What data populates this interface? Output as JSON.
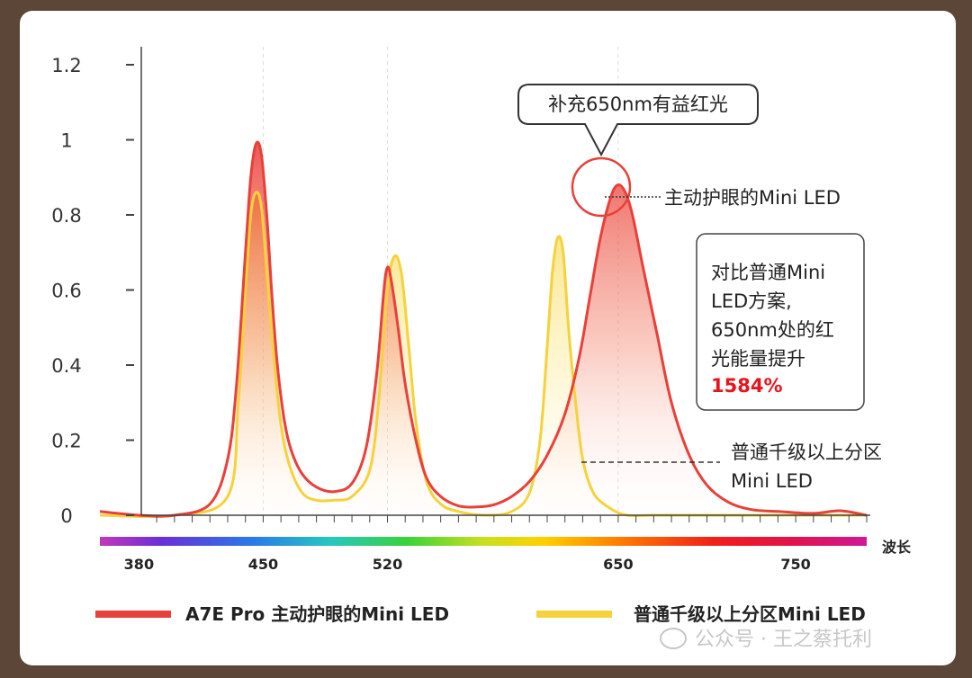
{
  "chart_data": {
    "type": "line",
    "title": "",
    "xlabel": "波长",
    "ylabel": "",
    "xlim": [
      358,
      790
    ],
    "ylim": [
      0,
      1.2
    ],
    "y_ticks": [
      0,
      0.2,
      0.4,
      0.6,
      0.8,
      1,
      1.2
    ],
    "y_tick_labels": [
      "0",
      "0.2",
      "0.4",
      "0.6",
      "0.8",
      "1",
      "1.2"
    ],
    "x_tick_labels": [
      {
        "value": 380,
        "label": "380"
      },
      {
        "value": 450,
        "label": "450"
      },
      {
        "value": 520,
        "label": "520"
      },
      {
        "value": 650,
        "label": "650"
      },
      {
        "value": 750,
        "label": "750"
      }
    ],
    "series": [
      {
        "name": "A7E Pro 主动护眼的Mini LED",
        "color": "#e8403a",
        "x": [
          358,
          380,
          400,
          420,
          430,
          435,
          440,
          443,
          446,
          449,
          452,
          455,
          458,
          462,
          466,
          472,
          480,
          490,
          500,
          508,
          514,
          518,
          520,
          522,
          526,
          530,
          536,
          542,
          550,
          560,
          570,
          580,
          590,
          600,
          610,
          620,
          628,
          634,
          640,
          646,
          650,
          654,
          658,
          664,
          672,
          680,
          690,
          700,
          712,
          725,
          740,
          760,
          775,
          790
        ],
        "y": [
          0.01,
          0.0,
          0.0,
          0.03,
          0.15,
          0.35,
          0.7,
          0.9,
          0.99,
          0.96,
          0.8,
          0.58,
          0.4,
          0.25,
          0.17,
          0.11,
          0.075,
          0.063,
          0.085,
          0.18,
          0.38,
          0.6,
          0.66,
          0.63,
          0.5,
          0.35,
          0.2,
          0.1,
          0.05,
          0.025,
          0.022,
          0.028,
          0.05,
          0.09,
          0.16,
          0.27,
          0.42,
          0.58,
          0.74,
          0.85,
          0.88,
          0.86,
          0.8,
          0.66,
          0.48,
          0.3,
          0.16,
          0.08,
          0.035,
          0.015,
          0.01,
          0.005,
          0.012,
          0.0
        ]
      },
      {
        "name": "普通千级以上分区Mini LED",
        "color": "#f5d23c",
        "x": [
          358,
          400,
          430,
          436,
          440,
          443,
          446,
          449,
          452,
          456,
          460,
          465,
          472,
          480,
          490,
          500,
          510,
          515,
          520,
          524,
          528,
          532,
          536,
          542,
          550,
          560,
          575,
          590,
          600,
          606,
          610,
          613,
          616,
          619,
          622,
          626,
          630,
          636,
          645,
          655,
          670,
          700,
          790
        ],
        "y": [
          0.0,
          0.0,
          0.05,
          0.3,
          0.6,
          0.8,
          0.86,
          0.82,
          0.65,
          0.42,
          0.24,
          0.13,
          0.06,
          0.04,
          0.04,
          0.05,
          0.12,
          0.3,
          0.6,
          0.69,
          0.64,
          0.45,
          0.25,
          0.09,
          0.03,
          0.01,
          0.0,
          0.01,
          0.06,
          0.2,
          0.45,
          0.65,
          0.74,
          0.7,
          0.5,
          0.3,
          0.15,
          0.06,
          0.02,
          0.0,
          0.0,
          0.0,
          0.0
        ]
      }
    ],
    "spectrum_bar": true,
    "grid": false,
    "legend_position": "bottom"
  },
  "annotations": {
    "callout_650": "补充650nm有益红光",
    "peak_label": "主动护眼的Mini LED",
    "compare_lines": [
      "对比普通Mini",
      "LED方案,",
      "650nm处的红",
      "光能量提升"
    ],
    "compare_highlight": "1584%",
    "normal_label_lines": [
      "普通千级以上分区",
      "Mini LED"
    ]
  },
  "legend": {
    "red_label": "A7E Pro 主动护眼的Mini LED",
    "yellow_label": "普通千级以上分区Mini LED"
  },
  "watermark": "公众号 · 王之蔡托利"
}
